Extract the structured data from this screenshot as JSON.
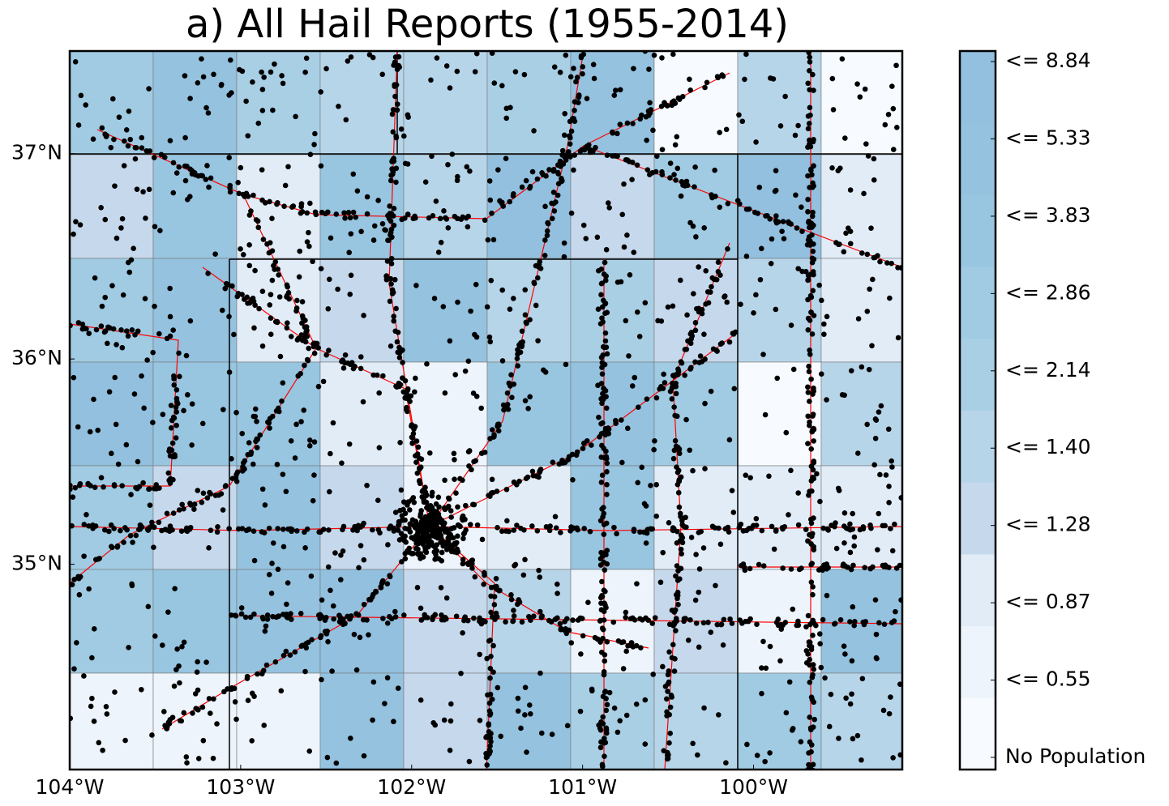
{
  "title": "a) All Hail Reports (1955-2014)",
  "map": {
    "lon_range": [
      -104,
      -99.13
    ],
    "lat_range": [
      34.0,
      37.5
    ],
    "lon_ticks": [
      {
        "value": -104,
        "label": "104°W"
      },
      {
        "value": -103,
        "label": "103°W"
      },
      {
        "value": -102,
        "label": "102°W"
      },
      {
        "value": -101,
        "label": "101°W"
      },
      {
        "value": -100,
        "label": "100°W"
      }
    ],
    "lat_ticks": [
      {
        "value": 37,
        "label": "37°N"
      },
      {
        "value": 36,
        "label": "36°N"
      },
      {
        "value": 35,
        "label": "35°N"
      }
    ]
  },
  "legend": [
    {
      "label": "No Population",
      "color": "#f7fbff"
    },
    {
      "label": "<= 0.55",
      "color": "#edf4fb"
    },
    {
      "label": "<= 0.87",
      "color": "#e1ecf7"
    },
    {
      "label": "<= 1.28",
      "color": "#c6d8ec"
    },
    {
      "label": "<= 1.40",
      "color": "#b7d5e9"
    },
    {
      "label": "<= 2.14",
      "color": "#a9cfe5"
    },
    {
      "label": "<= 2.86",
      "color": "#a0cbe2"
    },
    {
      "label": "<= 3.83",
      "color": "#98c5e0"
    },
    {
      "label": "<= 5.33",
      "color": "#94c2df"
    },
    {
      "label": "<= 8.84",
      "color": "#92c0de"
    }
  ]
}
